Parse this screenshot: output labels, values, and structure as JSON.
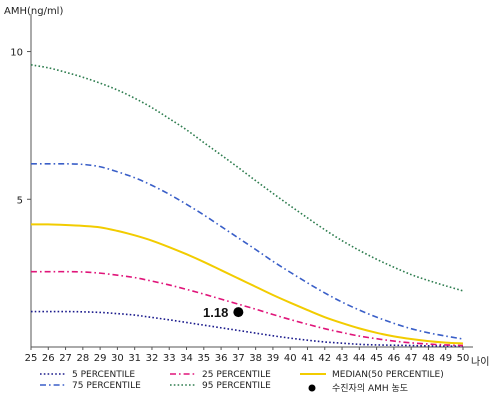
{
  "chart_data": {
    "type": "line",
    "ylabel": "AMH(ng/ml)",
    "xlabel": "나이",
    "x": [
      25,
      26,
      27,
      28,
      29,
      30,
      31,
      32,
      33,
      34,
      35,
      36,
      37,
      38,
      39,
      40,
      41,
      42,
      43,
      44,
      45,
      46,
      47,
      48,
      49,
      50
    ],
    "xlim": [
      25,
      50
    ],
    "ylim": [
      0,
      11
    ],
    "yticks": [
      5,
      10
    ],
    "grid": false,
    "legend_position": "bottom",
    "series": [
      {
        "name": "5 PERCENTILE",
        "color": "#1a1a8c",
        "dash": "dotted",
        "values": [
          1.2,
          1.2,
          1.2,
          1.19,
          1.17,
          1.13,
          1.08,
          1.0,
          0.92,
          0.83,
          0.74,
          0.65,
          0.56,
          0.47,
          0.38,
          0.3,
          0.23,
          0.17,
          0.13,
          0.09,
          0.07,
          0.06,
          0.05,
          0.04,
          0.03,
          0.03
        ]
      },
      {
        "name": "25 PERCENTILE",
        "color": "#e0157a",
        "dash": "dashdot",
        "values": [
          2.55,
          2.55,
          2.55,
          2.54,
          2.5,
          2.43,
          2.35,
          2.23,
          2.1,
          1.95,
          1.79,
          1.62,
          1.45,
          1.28,
          1.1,
          0.93,
          0.77,
          0.62,
          0.49,
          0.37,
          0.28,
          0.2,
          0.14,
          0.1,
          0.07,
          0.05
        ]
      },
      {
        "name": "MEDIAN(50 PERCENTILE)",
        "color": "#f2cc00",
        "dash": "solid",
        "values": [
          4.15,
          4.15,
          4.13,
          4.1,
          4.05,
          3.93,
          3.78,
          3.6,
          3.38,
          3.14,
          2.88,
          2.6,
          2.32,
          2.04,
          1.76,
          1.5,
          1.25,
          1.01,
          0.81,
          0.63,
          0.48,
          0.36,
          0.27,
          0.2,
          0.15,
          0.12
        ]
      },
      {
        "name": "75 PERCENTILE",
        "color": "#3a5fc8",
        "dash": "dashdot",
        "values": [
          6.2,
          6.2,
          6.2,
          6.18,
          6.1,
          5.93,
          5.73,
          5.47,
          5.17,
          4.83,
          4.47,
          4.08,
          3.69,
          3.3,
          2.9,
          2.53,
          2.17,
          1.83,
          1.52,
          1.25,
          1.01,
          0.8,
          0.62,
          0.48,
          0.37,
          0.27
        ]
      },
      {
        "name": "95 PERCENTILE",
        "color": "#2e7d4f",
        "dash": "dotted",
        "values": [
          9.55,
          9.45,
          9.3,
          9.13,
          8.93,
          8.7,
          8.42,
          8.1,
          7.73,
          7.35,
          6.92,
          6.5,
          6.07,
          5.63,
          5.2,
          4.78,
          4.37,
          3.97,
          3.6,
          3.27,
          2.97,
          2.7,
          2.45,
          2.25,
          2.07,
          1.9
        ]
      }
    ],
    "marker": {
      "name": "수진자의 AMH 농도",
      "x": 37,
      "y": 1.18,
      "label": "1.18"
    }
  },
  "legend": {
    "items": [
      {
        "label": "5 PERCENTILE",
        "color": "#1a1a8c",
        "style": "dotted"
      },
      {
        "label": "25 PERCENTILE",
        "color": "#e0157a",
        "style": "dashdot"
      },
      {
        "label": "MEDIAN(50 PERCENTILE)",
        "color": "#f2cc00",
        "style": "solid"
      },
      {
        "label": "75 PERCENTILE",
        "color": "#3a5fc8",
        "style": "dashdot"
      },
      {
        "label": "95 PERCENTILE",
        "color": "#2e7d4f",
        "style": "dotted"
      },
      {
        "label": "수진자의 AMH 농도",
        "color": "#000000",
        "style": "dot"
      }
    ]
  }
}
